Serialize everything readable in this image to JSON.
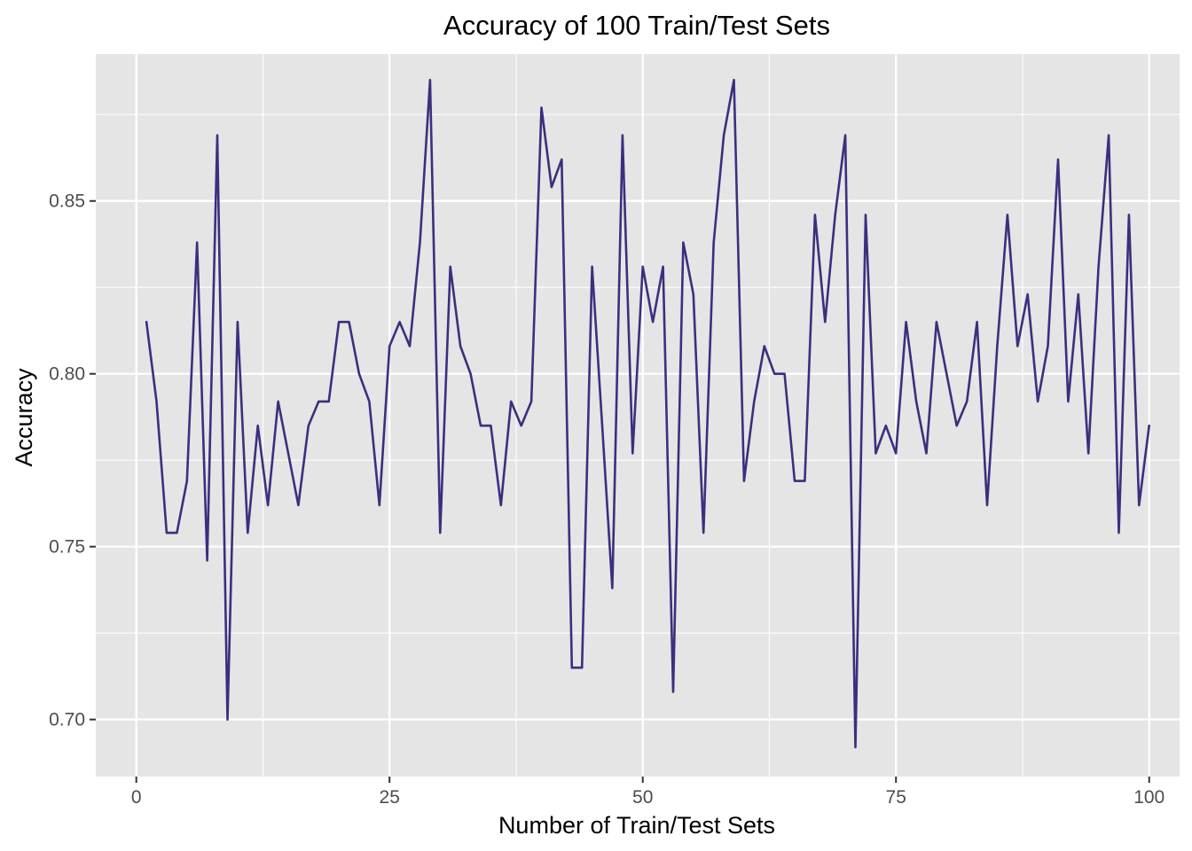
{
  "chart_data": {
    "type": "line",
    "title": "Accuracy of 100 Train/Test Sets",
    "xlabel": "Number of Train/Test Sets",
    "ylabel": "Accuracy",
    "xlim": [
      -4,
      103
    ],
    "ylim": [
      0.6835,
      0.8925
    ],
    "x_ticks": [
      0,
      25,
      50,
      75,
      100
    ],
    "x_tick_labels": [
      "0",
      "25",
      "50",
      "75",
      "100"
    ],
    "y_ticks": [
      0.7,
      0.75,
      0.8,
      0.85
    ],
    "y_tick_labels": [
      "0.70",
      "0.75",
      "0.80",
      "0.85"
    ],
    "grid": true,
    "colors": {
      "panel": "#e5e5e5",
      "grid": "#ffffff",
      "line": "#3b2f7e"
    },
    "series": [
      {
        "x": [
          1,
          2,
          3,
          4,
          5,
          6,
          7,
          8,
          9,
          10,
          11,
          12,
          13,
          14,
          15,
          16,
          17,
          18,
          19,
          20,
          21,
          22,
          23,
          24,
          25,
          26,
          27,
          28,
          29,
          30,
          31,
          32,
          33,
          34,
          35,
          36,
          37,
          38,
          39,
          40,
          41,
          42,
          43,
          44,
          45,
          46,
          47,
          48,
          49,
          50,
          51,
          52,
          53,
          54,
          55,
          56,
          57,
          58,
          59,
          60,
          61,
          62,
          63,
          64,
          65,
          66,
          67,
          68,
          69,
          70,
          71,
          72,
          73,
          74,
          75,
          76,
          77,
          78,
          79,
          80,
          81,
          82,
          83,
          84,
          85,
          86,
          87,
          88,
          89,
          90,
          91,
          92,
          93,
          94,
          95,
          96,
          97,
          98,
          99,
          100
        ],
        "values": [
          0.815,
          0.792,
          0.754,
          0.754,
          0.769,
          0.838,
          0.746,
          0.869,
          0.7,
          0.815,
          0.754,
          0.785,
          0.762,
          0.792,
          0.777,
          0.762,
          0.785,
          0.792,
          0.792,
          0.815,
          0.815,
          0.8,
          0.792,
          0.762,
          0.808,
          0.815,
          0.808,
          0.838,
          0.885,
          0.754,
          0.831,
          0.808,
          0.8,
          0.785,
          0.785,
          0.762,
          0.792,
          0.785,
          0.792,
          0.877,
          0.854,
          0.862,
          0.715,
          0.715,
          0.831,
          0.785,
          0.738,
          0.869,
          0.777,
          0.831,
          0.815,
          0.831,
          0.708,
          0.838,
          0.823,
          0.754,
          0.838,
          0.869,
          0.885,
          0.769,
          0.792,
          0.808,
          0.8,
          0.8,
          0.769,
          0.769,
          0.846,
          0.815,
          0.846,
          0.869,
          0.692,
          0.846,
          0.777,
          0.785,
          0.777,
          0.815,
          0.792,
          0.777,
          0.815,
          0.8,
          0.785,
          0.792,
          0.815,
          0.762,
          0.808,
          0.846,
          0.808,
          0.823,
          0.792,
          0.808,
          0.862,
          0.792,
          0.823,
          0.777,
          0.831,
          0.869,
          0.754,
          0.846,
          0.762,
          0.785
        ]
      }
    ]
  }
}
